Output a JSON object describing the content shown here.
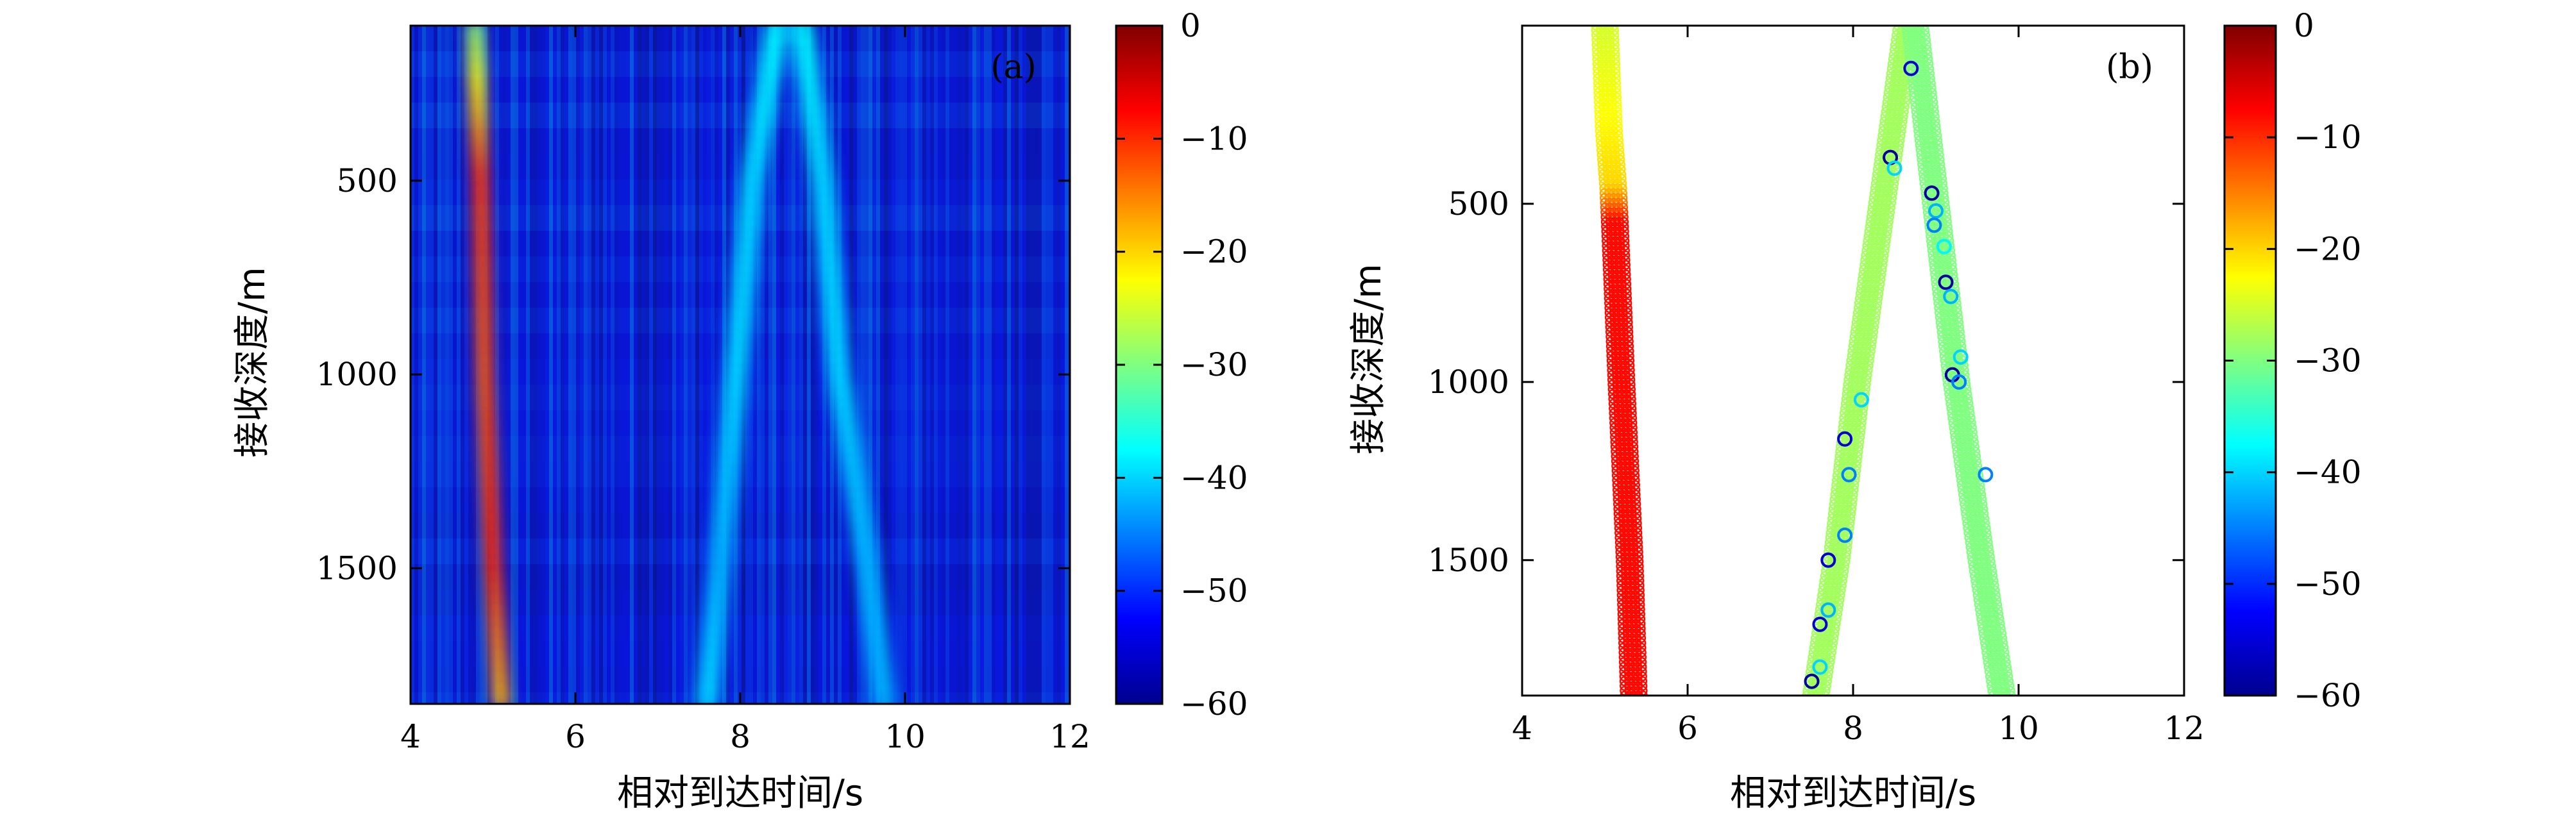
{
  "chart_data": [
    {
      "type": "heatmap",
      "panel_label": "(a)",
      "xlabel": "相对到达时间/s",
      "ylabel": "接收深度/m",
      "xlim": [
        4,
        12
      ],
      "ylim": [
        1850,
        100
      ],
      "xticks": [
        4,
        6,
        8,
        10,
        12
      ],
      "xtick_labels": [
        "4",
        "6",
        "8",
        "10",
        "12"
      ],
      "yticks": [
        500,
        1000,
        1500
      ],
      "ytick_labels": [
        "500",
        "1000",
        "1500"
      ],
      "colorbar": {
        "range": [
          -60,
          0
        ],
        "ticks": [
          0,
          -10,
          -20,
          -30,
          -40,
          -50,
          -60
        ],
        "tick_labels": [
          "0",
          "−10",
          "−20",
          "−30",
          "−40",
          "−50",
          "−60"
        ],
        "colormap": "jet"
      },
      "background_level": -52,
      "arrivals": [
        {
          "depth": [
            100,
            500,
            1000,
            1500,
            1850
          ],
          "time": [
            4.78,
            4.85,
            4.9,
            5.0,
            5.1
          ],
          "level": [
            -30,
            -10,
            -12,
            -10,
            -18
          ]
        },
        {
          "depth": [
            100,
            500,
            1000,
            1500,
            1850
          ],
          "time": [
            8.45,
            8.15,
            7.95,
            7.75,
            7.6
          ],
          "level": [
            -38,
            -40,
            -40,
            -42,
            -40
          ]
        },
        {
          "depth": [
            100,
            500,
            1000,
            1500,
            1850
          ],
          "time": [
            8.75,
            9.0,
            9.2,
            9.55,
            9.75
          ],
          "level": [
            -38,
            -40,
            -40,
            -42,
            -42
          ]
        }
      ]
    },
    {
      "type": "scatter",
      "panel_label": "(b)",
      "xlabel": "相对到达时间/s",
      "ylabel": "接收深度/m",
      "xlim": [
        4,
        12
      ],
      "ylim": [
        1880,
        0
      ],
      "xticks": [
        4,
        6,
        8,
        10,
        12
      ],
      "xtick_labels": [
        "4",
        "6",
        "8",
        "10",
        "12"
      ],
      "yticks": [
        500,
        1000,
        1500
      ],
      "ytick_labels": [
        "500",
        "1000",
        "1500"
      ],
      "colorbar": {
        "range": [
          -60,
          0
        ],
        "ticks": [
          0,
          -10,
          -20,
          -30,
          -40,
          -50,
          -60
        ],
        "tick_labels": [
          "0",
          "−10",
          "−20",
          "−30",
          "−40",
          "−50",
          "−60"
        ],
        "colormap": "jet"
      },
      "rays": [
        {
          "depth": [
            0,
            300,
            450,
            550,
            1000,
            1500,
            1880
          ],
          "time": [
            5.0,
            5.05,
            5.1,
            5.12,
            5.2,
            5.3,
            5.35
          ],
          "level": [
            -25,
            -22,
            -20,
            -8,
            -8,
            -8,
            -8
          ]
        },
        {
          "depth": [
            0,
            500,
            1000,
            1500,
            1880
          ],
          "time": [
            8.65,
            8.35,
            8.05,
            7.8,
            7.55
          ],
          "level": [
            -28,
            -28,
            -28,
            -28,
            -28
          ]
        },
        {
          "depth": [
            0,
            500,
            1000,
            1500,
            1880
          ],
          "time": [
            8.75,
            9.0,
            9.25,
            9.55,
            9.8
          ],
          "level": [
            -30,
            -30,
            -30,
            -30,
            -30
          ]
        }
      ],
      "markers": [
        {
          "x": 8.7,
          "y": 120,
          "level": -55
        },
        {
          "x": 8.45,
          "y": 370,
          "level": -58
        },
        {
          "x": 8.5,
          "y": 400,
          "level": -40
        },
        {
          "x": 8.95,
          "y": 470,
          "level": -58
        },
        {
          "x": 9.0,
          "y": 520,
          "level": -42
        },
        {
          "x": 8.98,
          "y": 560,
          "level": -45
        },
        {
          "x": 9.1,
          "y": 620,
          "level": -38
        },
        {
          "x": 9.12,
          "y": 720,
          "level": -58
        },
        {
          "x": 9.18,
          "y": 760,
          "level": -42
        },
        {
          "x": 9.3,
          "y": 930,
          "level": -40
        },
        {
          "x": 9.2,
          "y": 980,
          "level": -58
        },
        {
          "x": 9.28,
          "y": 1000,
          "level": -45
        },
        {
          "x": 8.1,
          "y": 1050,
          "level": -40
        },
        {
          "x": 7.9,
          "y": 1160,
          "level": -55
        },
        {
          "x": 7.95,
          "y": 1260,
          "level": -45
        },
        {
          "x": 9.6,
          "y": 1260,
          "level": -45
        },
        {
          "x": 7.9,
          "y": 1430,
          "level": -45
        },
        {
          "x": 7.7,
          "y": 1500,
          "level": -55
        },
        {
          "x": 7.7,
          "y": 1640,
          "level": -42
        },
        {
          "x": 7.6,
          "y": 1680,
          "level": -55
        },
        {
          "x": 7.6,
          "y": 1800,
          "level": -40
        },
        {
          "x": 7.5,
          "y": 1840,
          "level": -58
        }
      ]
    }
  ]
}
